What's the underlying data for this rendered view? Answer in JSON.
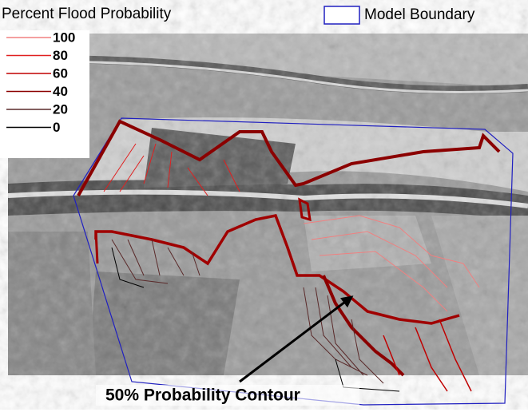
{
  "legend": {
    "title": "Percent Flood Probability",
    "entries": [
      {
        "label": 100,
        "color": "#f08080"
      },
      {
        "label": 80,
        "color": "#e02020"
      },
      {
        "label": 60,
        "color": "#c00000"
      },
      {
        "label": 40,
        "color": "#8b0000"
      },
      {
        "label": 20,
        "color": "#5a2a2a"
      },
      {
        "label": 0,
        "color": "#000000"
      }
    ]
  },
  "boundary_label": "Model Boundary",
  "annotation": "50% Probability Contour"
}
